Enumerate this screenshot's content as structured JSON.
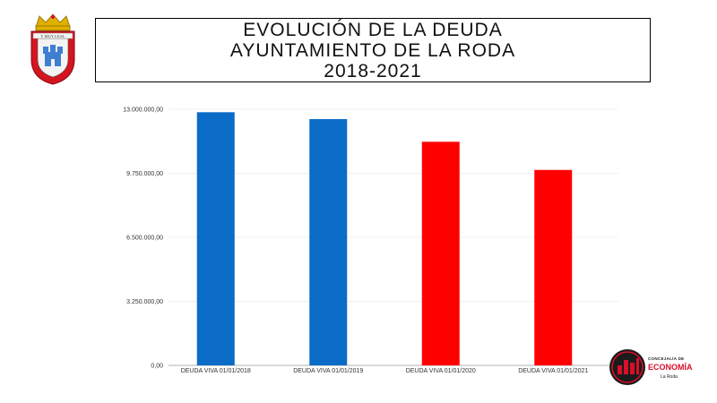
{
  "header": {
    "title_lines": [
      "EVOLUCIÓN DE LA DEUDA",
      "AYUNTAMIENTO DE LA RODA",
      "2018-2021"
    ]
  },
  "crest": {
    "icon": "coat-of-arms-icon",
    "ribbon_text": "Y MUY LEAL"
  },
  "chart_data": {
    "type": "bar",
    "categories": [
      "DEUDA VIVA 01/01/2018",
      "DEUDA VIVA 01/01/2019",
      "DEUDA VIVA 01/01/2020",
      "DEUDA VIVA 01/01/2021"
    ],
    "values": [
      12850000,
      12500000,
      11350000,
      9920000
    ],
    "bar_colors": [
      "#0a6cc7",
      "#0a6cc7",
      "#ff0000",
      "#ff0000"
    ],
    "ylim": [
      0,
      13000000
    ],
    "yticks": [
      0,
      3250000,
      6500000,
      9750000,
      13000000
    ],
    "ytick_labels": [
      "0,00",
      "3.250.000,00",
      "6.500.000,00",
      "9.750.000,00",
      "13.000.000,00"
    ],
    "grid": true,
    "title": "",
    "xlabel": "",
    "ylabel": ""
  },
  "logo": {
    "line1": "CONCEJALÍA DE",
    "line2": "ECONOMÍA",
    "line3": "La Roda",
    "accent_color": "#d90f2a"
  }
}
